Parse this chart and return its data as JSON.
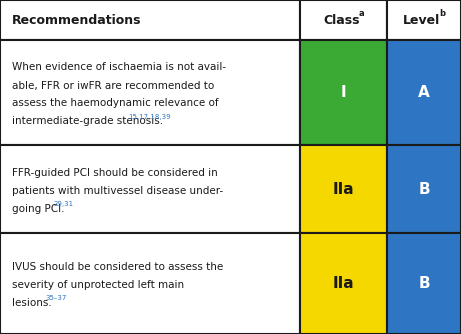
{
  "col_headers": [
    "Recommendations",
    "Class",
    "Level"
  ],
  "header_sups": [
    "",
    "a",
    "b"
  ],
  "rows": [
    {
      "lines": [
        "When evidence of ischaemia is not avail-",
        "able, FFR or iwFR are recommended to",
        "assess the haemodynamic relevance of",
        "intermediate-grade stenosis."
      ],
      "superscript": "15,17,18,39",
      "class_val": "I",
      "level_val": "A",
      "class_color": "#3aaa35",
      "level_color": "#2e75c3",
      "class_text_color": "#ffffff",
      "level_text_color": "#ffffff"
    },
    {
      "lines": [
        "FFR-guided PCI should be considered in",
        "patients with multivessel disease under-",
        "going PCI."
      ],
      "superscript": "29,31",
      "class_val": "IIa",
      "level_val": "B",
      "class_color": "#f5d800",
      "level_color": "#2e75c3",
      "class_text_color": "#1a1a1a",
      "level_text_color": "#ffffff"
    },
    {
      "lines": [
        "IVUS should be considered to assess the",
        "severity of unprotected left main",
        "lesions."
      ],
      "superscript": "35–37",
      "class_val": "IIa",
      "level_val": "B",
      "class_color": "#f5d800",
      "level_color": "#2e75c3",
      "class_text_color": "#1a1a1a",
      "level_text_color": "#ffffff"
    }
  ],
  "border_color": "#1a1a1a",
  "superscript_color": "#2e75c3",
  "row_text_color": "#1a1a1a",
  "header_text_color": "#1a1a1a",
  "fig_width": 4.61,
  "fig_height": 3.34,
  "dpi": 100
}
